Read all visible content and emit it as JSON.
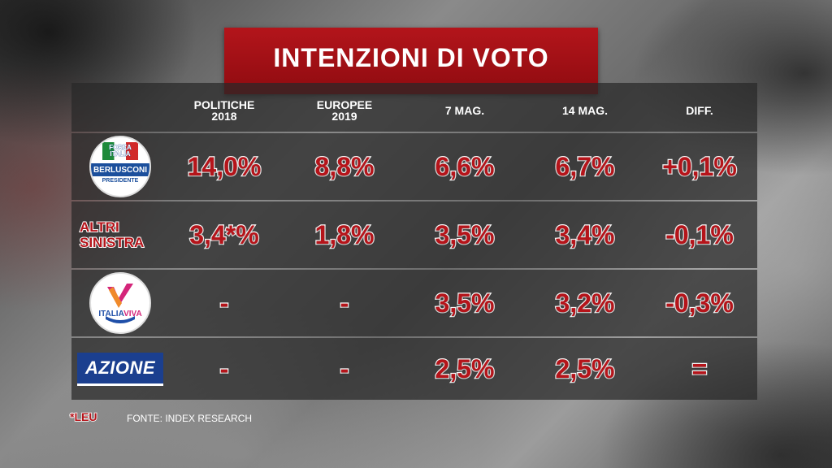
{
  "title": "INTENZIONI DI VOTO",
  "columns": [
    {
      "line1": "POLITICHE",
      "line2": "2018"
    },
    {
      "line1": "EUROPEE",
      "line2": "2019"
    },
    {
      "line1": "7 MAG.",
      "line2": ""
    },
    {
      "line1": "14 MAG.",
      "line2": ""
    },
    {
      "line1": "DIFF.",
      "line2": ""
    }
  ],
  "rows": [
    {
      "party_icon": "forza-italia-logo",
      "logo_text": {
        "top1": "FORZA",
        "top2": "ITALIA",
        "band": "BERLUSCONI",
        "sub": "PRESIDENTE"
      },
      "values": [
        "14,0%",
        "8,8%",
        "6,6%",
        "6,7%",
        "+0,1%"
      ]
    },
    {
      "party_label_line1": "ALTRI",
      "party_label_line2": "SINISTRA",
      "values": [
        "3,4*%",
        "1,8%",
        "3,5%",
        "3,4%",
        "-0,1%"
      ]
    },
    {
      "party_icon": "italia-viva-logo",
      "logo_text": {
        "part1": "ITALIA",
        "part2": "VIVA"
      },
      "values": [
        "-",
        "-",
        "3,5%",
        "3,2%",
        "-0,3%"
      ]
    },
    {
      "party_icon": "azione-logo",
      "logo_text": {
        "name": "AZIONE"
      },
      "values": [
        "-",
        "-",
        "2,5%",
        "2,5%",
        "="
      ]
    }
  ],
  "footnote": "*LEU",
  "source": "FONTE: INDEX RESEARCH",
  "colors": {
    "title_bg": "#a01016",
    "value_red": "#b5141a",
    "row_bg": "#282828",
    "azione_blue": "#1b3f8f",
    "forza_blue": "#1b4f9c",
    "viva_pink": "#d4257a"
  }
}
